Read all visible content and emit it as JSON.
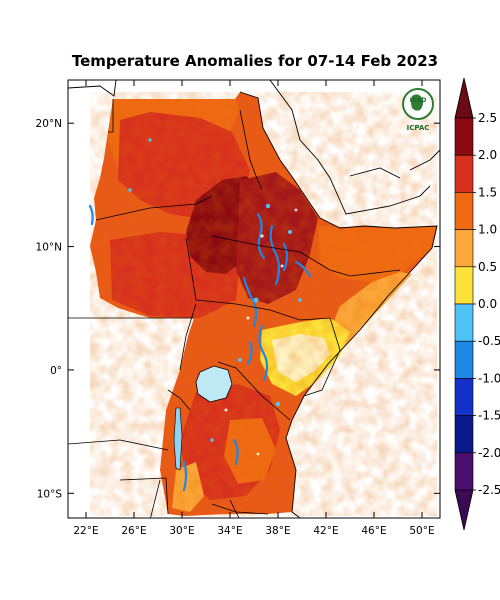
{
  "title": "Temperature Anomalies for 07-14 Feb 2023",
  "logo": {
    "top_text": "IGAD",
    "bottom_text": "ICPAC"
  },
  "map": {
    "lon_range": [
      20.5,
      51.5
    ],
    "lat_range": [
      -12,
      23.5
    ],
    "x_ticks": [
      {
        "lon": 22,
        "label": "22°E"
      },
      {
        "lon": 26,
        "label": "26°E"
      },
      {
        "lon": 30,
        "label": "30°E"
      },
      {
        "lon": 34,
        "label": "34°E"
      },
      {
        "lon": 38,
        "label": "38°E"
      },
      {
        "lon": 42,
        "label": "42°E"
      },
      {
        "lon": 46,
        "label": "46°E"
      },
      {
        "lon": 50,
        "label": "50°E"
      }
    ],
    "y_ticks": [
      {
        "lat": 20,
        "label": "20°N"
      },
      {
        "lat": 10,
        "label": "10°N"
      },
      {
        "lat": 0,
        "label": "0°"
      },
      {
        "lat": -10,
        "label": "10°S"
      }
    ]
  },
  "colorbar": {
    "levels": [
      {
        "label": "2.5",
        "color": "#8b0a12"
      },
      {
        "label": "2.0",
        "color": "#d7301f"
      },
      {
        "label": "1.5",
        "color": "#f06a14"
      },
      {
        "label": "1.0",
        "color": "#fca73a"
      },
      {
        "label": "0.5",
        "color": "#fde23a"
      },
      {
        "label": "0.0",
        "color": "#ffffff"
      },
      {
        "label": "-0.5",
        "color": "#4fc3f7"
      },
      {
        "label": "-1.0",
        "color": "#1e88e5"
      },
      {
        "label": "-1.5",
        "color": "#1330c8"
      },
      {
        "label": "-2.0",
        "color": "#0a1a8a"
      },
      {
        "label": "-2.5",
        "color": "#4a0f6e"
      }
    ],
    "top_arrow_color": "#6a0a12",
    "bottom_arrow_color": "#3a0a55"
  }
}
